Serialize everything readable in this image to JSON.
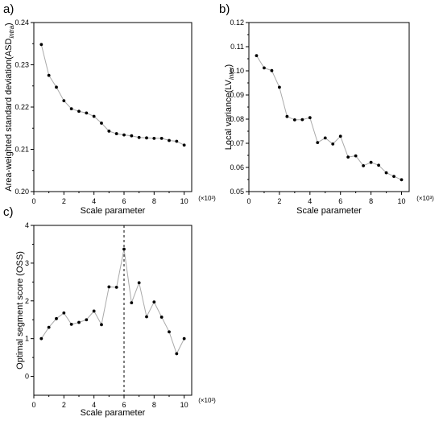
{
  "chart_data": [
    {
      "type": "line",
      "panel_label": "a)",
      "xlabel": "Scale parameter",
      "x_multiplier": "(×10³)",
      "ylabel": {
        "main": "Area-weighted standard deviation(ASD",
        "sub": "intra",
        "end": ")"
      },
      "xlim": [
        0,
        10.5
      ],
      "ylim": [
        0.2,
        0.24
      ],
      "xticks": [
        0,
        2,
        4,
        6,
        8,
        10
      ],
      "yticks": [
        0.2,
        0.21,
        0.22,
        0.23,
        0.24
      ],
      "ytick_labels": [
        "0.20",
        "0.21",
        "0.22",
        "0.23",
        "0.24"
      ],
      "x": [
        0.5,
        1,
        1.5,
        2,
        2.5,
        3,
        3.5,
        4,
        4.5,
        5,
        5.5,
        6,
        6.5,
        7,
        7.5,
        8,
        8.5,
        9,
        9.5,
        10
      ],
      "values": [
        0.2348,
        0.2275,
        0.2247,
        0.2215,
        0.2196,
        0.219,
        0.2186,
        0.2178,
        0.2162,
        0.2143,
        0.2137,
        0.2134,
        0.2132,
        0.2128,
        0.2127,
        0.2126,
        0.2126,
        0.2121,
        0.2119,
        0.211
      ],
      "marker_color": "#000000",
      "line_color": "#aaaaaa"
    },
    {
      "type": "line",
      "panel_label": "b)",
      "xlabel": "Scale parameter",
      "x_multiplier": "(×10³)",
      "ylabel": {
        "main": "Local variance(LV",
        "sub": "inter",
        "end": ")"
      },
      "xlim": [
        0,
        10.5
      ],
      "ylim": [
        0.05,
        0.12
      ],
      "xticks": [
        0,
        2,
        4,
        6,
        8,
        10
      ],
      "yticks": [
        0.05,
        0.06,
        0.07,
        0.08,
        0.09,
        0.1,
        0.11,
        0.12
      ],
      "ytick_labels": [
        "0.05",
        "0.06",
        "0.07",
        "0.08",
        "0.09",
        "0.10",
        "0.11",
        "0.12"
      ],
      "x": [
        0.5,
        1,
        1.5,
        2,
        2.5,
        3,
        3.5,
        4,
        4.5,
        5,
        5.5,
        6,
        6.5,
        7,
        7.5,
        8,
        8.5,
        9,
        9.5,
        10
      ],
      "values": [
        0.1063,
        0.1012,
        0.1001,
        0.0932,
        0.0811,
        0.0797,
        0.0798,
        0.0806,
        0.0703,
        0.0722,
        0.0697,
        0.0729,
        0.0643,
        0.0648,
        0.0607,
        0.0621,
        0.0609,
        0.0578,
        0.0563,
        0.0549
      ],
      "marker_color": "#000000",
      "line_color": "#aaaaaa"
    },
    {
      "type": "line",
      "panel_label": "c)",
      "xlabel": "Scale parameter",
      "x_multiplier": "(×10³)",
      "ylabel": {
        "main": "Optimal segment score (OSS)",
        "sub": "",
        "end": ""
      },
      "xlim": [
        0,
        10.5
      ],
      "ylim": [
        -0.5,
        4
      ],
      "xticks": [
        0,
        2,
        4,
        6,
        8,
        10
      ],
      "yticks": [
        0,
        1,
        2,
        3,
        4
      ],
      "ytick_labels": [
        "0",
        "1",
        "2",
        "3",
        "4"
      ],
      "x": [
        0.5,
        1,
        1.5,
        2,
        2.5,
        3,
        3.5,
        4,
        4.5,
        5,
        5.5,
        6,
        6.5,
        7,
        7.5,
        8,
        8.5,
        9,
        9.5,
        10
      ],
      "values": [
        1.0,
        1.3,
        1.53,
        1.68,
        1.38,
        1.43,
        1.5,
        1.73,
        1.37,
        2.37,
        2.36,
        3.37,
        1.95,
        2.48,
        1.58,
        1.97,
        1.57,
        1.18,
        0.6,
        1.0
      ],
      "reference_line_x": 6,
      "marker_color": "#000000",
      "line_color": "#aaaaaa"
    }
  ]
}
